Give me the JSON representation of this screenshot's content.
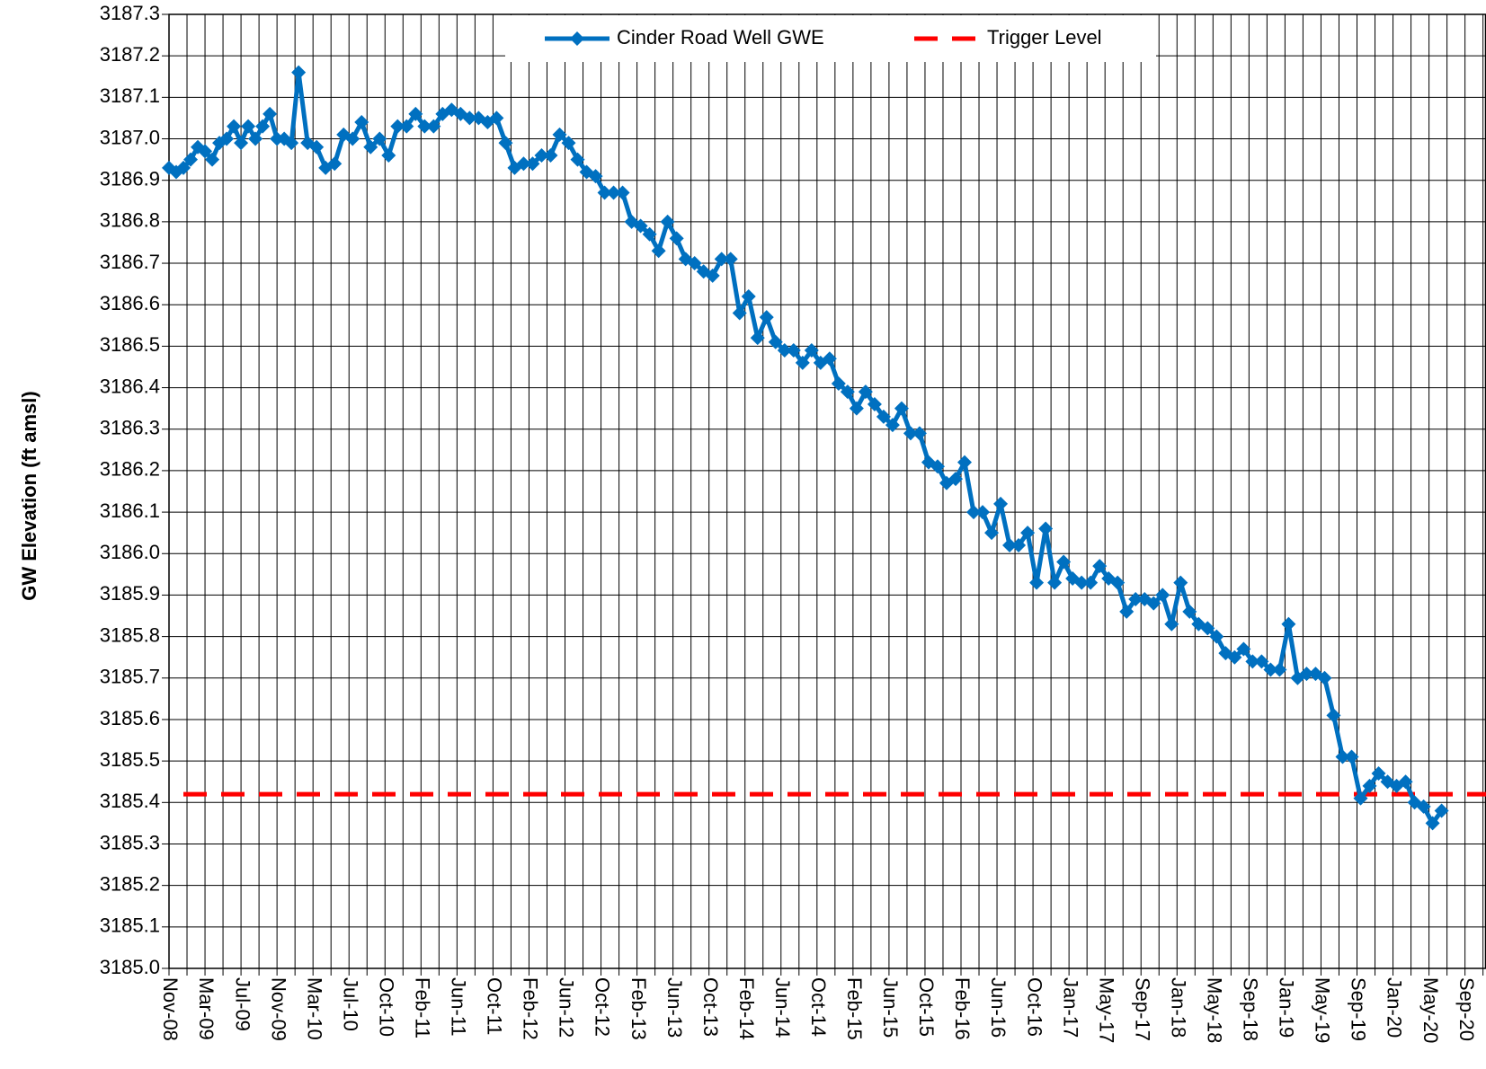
{
  "chart_data": {
    "type": "line",
    "y_label": "GW Elevation (ft amsl)",
    "x": [
      0,
      24,
      48,
      72,
      96,
      120,
      144,
      168,
      192,
      216,
      240,
      264,
      288,
      312,
      336,
      360,
      384,
      408,
      432,
      462,
      492,
      522,
      552,
      582,
      612,
      642,
      672,
      702,
      732,
      762,
      792,
      822,
      852,
      882,
      912,
      942,
      972,
      1002,
      1032,
      1062,
      1092,
      1122,
      1152,
      1182,
      1212,
      1242,
      1272,
      1302,
      1332,
      1362,
      1392,
      1422,
      1452,
      1482,
      1512,
      1542,
      1572,
      1602,
      1632,
      1662,
      1692,
      1722,
      1752,
      1782,
      1812,
      1842,
      1872,
      1902,
      1932,
      1962,
      1992,
      2022,
      2052,
      2082,
      2112,
      2142,
      2172,
      2202,
      2232,
      2262,
      2292,
      2322,
      2352,
      2382,
      2412,
      2442,
      2472,
      2502,
      2532,
      2562,
      2592,
      2622,
      2652,
      2682,
      2712,
      2742,
      2772,
      2802,
      2832,
      2862,
      2892,
      2922,
      2952,
      2982,
      3012,
      3042,
      3072,
      3102,
      3132,
      3162,
      3192,
      3222,
      3252,
      3282,
      3312,
      3342,
      3372,
      3402,
      3432,
      3462,
      3492,
      3522,
      3552,
      3582,
      3612,
      3642,
      3672,
      3702,
      3732,
      3762,
      3792,
      3822,
      3852,
      3882,
      3912,
      3942,
      3972,
      4002,
      4032,
      4062,
      4092,
      4122,
      4152,
      4182,
      4212,
      4242
    ],
    "series": [
      {
        "name": "Cinder Road Well GWE",
        "color": "#0070C0",
        "values": [
          3186.93,
          3186.92,
          3186.93,
          3186.95,
          3186.98,
          3186.97,
          3186.95,
          3186.99,
          3187.0,
          3187.03,
          3186.99,
          3187.03,
          3187.0,
          3187.03,
          3187.06,
          3187.0,
          3187.0,
          3186.99,
          3187.16,
          3186.99,
          3186.98,
          3186.93,
          3186.94,
          3187.01,
          3187.0,
          3187.04,
          3186.98,
          3187.0,
          3186.96,
          3187.03,
          3187.03,
          3187.06,
          3187.03,
          3187.03,
          3187.06,
          3187.07,
          3187.06,
          3187.05,
          3187.05,
          3187.04,
          3187.05,
          3186.99,
          3186.93,
          3186.94,
          3186.94,
          3186.96,
          3186.96,
          3187.01,
          3186.99,
          3186.95,
          3186.92,
          3186.91,
          3186.87,
          3186.87,
          3186.87,
          3186.8,
          3186.79,
          3186.77,
          3186.73,
          3186.8,
          3186.76,
          3186.71,
          3186.7,
          3186.68,
          3186.67,
          3186.71,
          3186.71,
          3186.58,
          3186.62,
          3186.52,
          3186.57,
          3186.51,
          3186.49,
          3186.49,
          3186.46,
          3186.49,
          3186.46,
          3186.47,
          3186.41,
          3186.39,
          3186.35,
          3186.39,
          3186.36,
          3186.33,
          3186.31,
          3186.35,
          3186.29,
          3186.29,
          3186.22,
          3186.21,
          3186.17,
          3186.18,
          3186.22,
          3186.1,
          3186.1,
          3186.05,
          3186.12,
          3186.02,
          3186.02,
          3186.05,
          3185.93,
          3186.06,
          3185.93,
          3185.98,
          3185.94,
          3185.93,
          3185.93,
          3185.97,
          3185.94,
          3185.93,
          3185.86,
          3185.89,
          3185.89,
          3185.88,
          3185.9,
          3185.83,
          3185.93,
          3185.86,
          3185.83,
          3185.82,
          3185.8,
          3185.76,
          3185.75,
          3185.77,
          3185.74,
          3185.74,
          3185.72,
          3185.72,
          3185.83,
          3185.7,
          3185.71,
          3185.71,
          3185.7,
          3185.61,
          3185.51,
          3185.51,
          3185.41,
          3185.44,
          3185.47,
          3185.45,
          3185.44,
          3185.45,
          3185.4,
          3185.39,
          3185.35,
          3185.38
        ]
      }
    ],
    "trigger_level": {
      "name": "Trigger Level",
      "color": "#FF0000",
      "value": 3185.42
    },
    "xlim": [
      0,
      4390
    ],
    "xticks": [
      {
        "value": 0,
        "label": "Nov-08"
      },
      {
        "value": 120,
        "label": "Mar-09"
      },
      {
        "value": 240,
        "label": "Jul-09"
      },
      {
        "value": 360,
        "label": "Nov-09"
      },
      {
        "value": 480,
        "label": "Mar-10"
      },
      {
        "value": 600,
        "label": "Jul-10"
      },
      {
        "value": 720,
        "label": "Oct-10"
      },
      {
        "value": 840,
        "label": "Feb-11"
      },
      {
        "value": 960,
        "label": "Jun-11"
      },
      {
        "value": 1080,
        "label": "Oct-11"
      },
      {
        "value": 1200,
        "label": "Feb-12"
      },
      {
        "value": 1320,
        "label": "Jun-12"
      },
      {
        "value": 1440,
        "label": "Oct-12"
      },
      {
        "value": 1560,
        "label": "Feb-13"
      },
      {
        "value": 1680,
        "label": "Jun-13"
      },
      {
        "value": 1800,
        "label": "Oct-13"
      },
      {
        "value": 1920,
        "label": "Feb-14"
      },
      {
        "value": 2040,
        "label": "Jun-14"
      },
      {
        "value": 2160,
        "label": "Oct-14"
      },
      {
        "value": 2280,
        "label": "Feb-15"
      },
      {
        "value": 2400,
        "label": "Jun-15"
      },
      {
        "value": 2520,
        "label": "Oct-15"
      },
      {
        "value": 2640,
        "label": "Feb-16"
      },
      {
        "value": 2760,
        "label": "Jun-16"
      },
      {
        "value": 2880,
        "label": "Oct-16"
      },
      {
        "value": 3000,
        "label": "Jan-17"
      },
      {
        "value": 3120,
        "label": "May-17"
      },
      {
        "value": 3240,
        "label": "Sep-17"
      },
      {
        "value": 3360,
        "label": "Jan-18"
      },
      {
        "value": 3480,
        "label": "May-18"
      },
      {
        "value": 3600,
        "label": "Sep-18"
      },
      {
        "value": 3720,
        "label": "Jan-19"
      },
      {
        "value": 3840,
        "label": "May-19"
      },
      {
        "value": 3960,
        "label": "Sep-19"
      },
      {
        "value": 4080,
        "label": "Jan-20"
      },
      {
        "value": 4200,
        "label": "May-20"
      },
      {
        "value": 4320,
        "label": "Sep-20"
      }
    ],
    "ylim": [
      3185.0,
      3187.3
    ],
    "yticks": [
      {
        "value": 3185.0,
        "label": "3185.0"
      },
      3185.1,
      3185.2,
      3185.3,
      3185.4,
      3185.5,
      3185.6,
      3185.7,
      3185.8,
      3185.9,
      {
        "value": 3186.0,
        "label": "3186.0"
      },
      3186.1,
      3186.2,
      3186.3,
      3186.4,
      3186.5,
      3186.6,
      3186.7,
      3186.8,
      3186.9,
      {
        "value": 3187.0,
        "label": "3187.0"
      },
      3187.1,
      3187.2,
      3187.3
    ],
    "grid": true,
    "legend": "top"
  }
}
